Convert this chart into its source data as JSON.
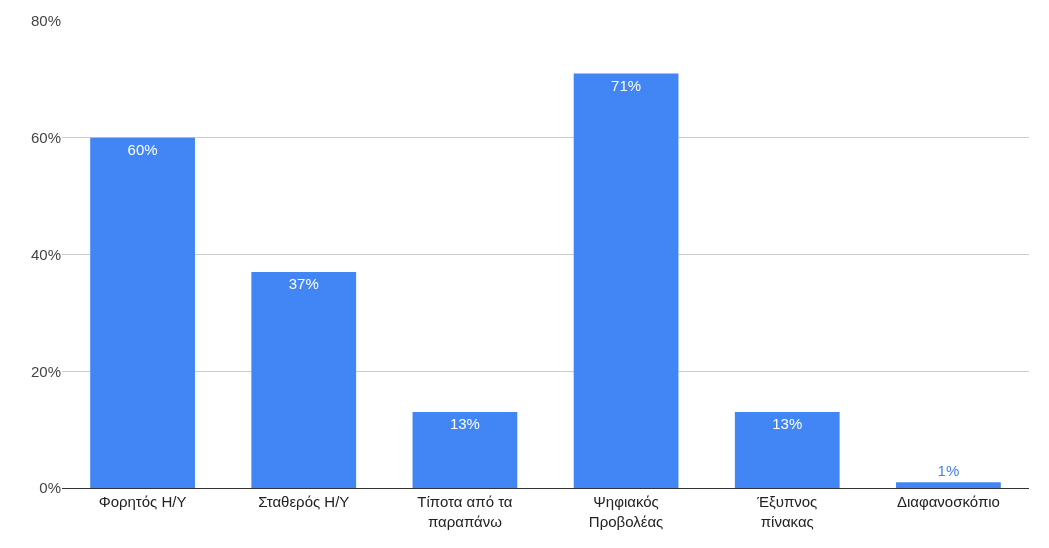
{
  "chart_data": {
    "type": "bar",
    "categories": [
      "Φορητός Η/Υ",
      "Σταθερός Η/Υ",
      "Τίποτα από τα παραπάνω",
      "Ψηφιακός Προβολέας",
      "Έξυπνος πίνακας",
      "Διαφανοσκόπιο"
    ],
    "values": [
      60,
      37,
      13,
      71,
      13,
      1
    ],
    "value_labels": [
      "60%",
      "37%",
      "13%",
      "71%",
      "13%",
      "1%"
    ],
    "color": "#4285f4",
    "ylim": [
      0,
      80
    ],
    "yticks": [
      {
        "value": 0,
        "label": "0%"
      },
      {
        "value": 20,
        "label": "20%"
      },
      {
        "value": 40,
        "label": "40%"
      },
      {
        "value": 60,
        "label": "60%"
      },
      {
        "value": 80,
        "label": "80%"
      }
    ],
    "grid": "y"
  }
}
